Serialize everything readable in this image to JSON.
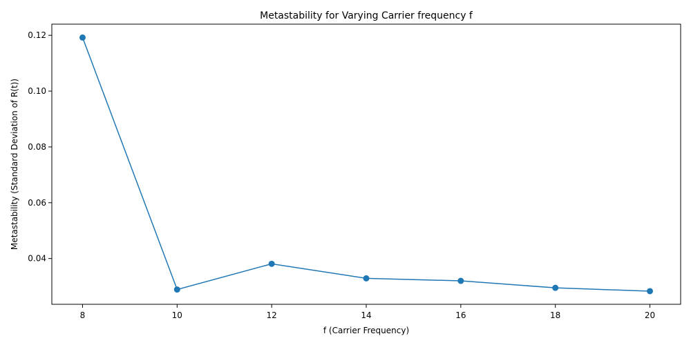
{
  "chart_data": {
    "type": "line",
    "title": "Metastability for Varying Carrier frequency f",
    "xlabel": "f (Carrier Frequency)",
    "ylabel": "Metastability (Standard Deviation of R(t))",
    "x": [
      8,
      10,
      12,
      14,
      16,
      18,
      20
    ],
    "series": [
      {
        "values": [
          0.1192,
          0.0289,
          0.0381,
          0.0329,
          0.032,
          0.0295,
          0.0283
        ]
      }
    ],
    "xlim": [
      7.35,
      20.65
    ],
    "ylim": [
      0.0236,
      0.124
    ],
    "xticks": [
      8,
      10,
      12,
      14,
      16,
      18,
      20
    ],
    "xtick_labels": [
      "8",
      "10",
      "12",
      "14",
      "16",
      "18",
      "20"
    ],
    "yticks": [
      0.04,
      0.06,
      0.08,
      0.1,
      0.12
    ],
    "ytick_labels": [
      "0.04",
      "0.06",
      "0.08",
      "0.10",
      "0.12"
    ],
    "markers": true,
    "grid": false,
    "color": "#1f77b4"
  }
}
